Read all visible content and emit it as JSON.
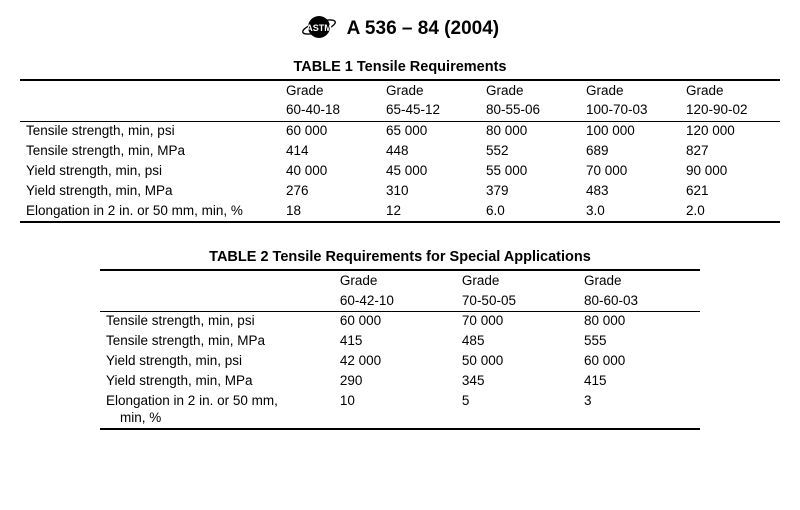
{
  "header": {
    "standard": "A 536 – 84  (2004)",
    "logo_text": "ASTM"
  },
  "table1": {
    "title": "TABLE 1   Tensile Requirements",
    "grade_word": "Grade",
    "grades": [
      "60-40-18",
      "65-45-12",
      "80-55-06",
      "100-70-03",
      "120-90-02"
    ],
    "rows": [
      {
        "label": "Tensile strength, min, psi",
        "values": [
          "60 000",
          "65 000",
          "80 000",
          "100 000",
          "120 000"
        ]
      },
      {
        "label": "Tensile strength, min, MPa",
        "values": [
          "414",
          "448",
          "552",
          "689",
          "827"
        ]
      },
      {
        "label": "Yield strength, min, psi",
        "values": [
          "40 000",
          "45 000",
          "55 000",
          "70 000",
          "90 000"
        ]
      },
      {
        "label": "Yield strength, min, MPa",
        "values": [
          "276",
          "310",
          "379",
          "483",
          "621"
        ]
      },
      {
        "label": "Elongation in 2 in. or 50 mm, min, %",
        "values": [
          "18",
          "12",
          "6.0",
          "3.0",
          "2.0"
        ]
      }
    ],
    "col_widths": [
      "260px",
      "100px",
      "100px",
      "100px",
      "100px",
      "100px"
    ]
  },
  "table2": {
    "title": "TABLE 2   Tensile Requirements for Special Applications",
    "grade_word": "Grade",
    "grades": [
      "60-42-10",
      "70-50-05",
      "80-60-03"
    ],
    "rows": [
      {
        "label": "Tensile strength, min, psi",
        "values": [
          "60 000",
          "70 000",
          "80 000"
        ]
      },
      {
        "label": "Tensile strength, min, MPa",
        "values": [
          "415",
          "485",
          "555"
        ]
      },
      {
        "label": "Yield strength, min, psi",
        "values": [
          "42 000",
          "50 000",
          "60 000"
        ]
      },
      {
        "label": "Yield strength, min, MPa",
        "values": [
          "290",
          "345",
          "415"
        ]
      },
      {
        "label": "Elongation in 2 in. or 50 mm, min, %",
        "label_line1": "Elongation in 2 in. or 50 mm,",
        "label_line2": "min, %",
        "values": [
          "10",
          "5",
          "3"
        ]
      }
    ],
    "col_widths": [
      "230px",
      "120px",
      "120px",
      "120px"
    ]
  },
  "style": {
    "rule_color": "#000000",
    "background": "#ffffff",
    "font_family": "Arial",
    "title_fontsize_pt": 14.5,
    "body_fontsize_pt": 13.5
  }
}
